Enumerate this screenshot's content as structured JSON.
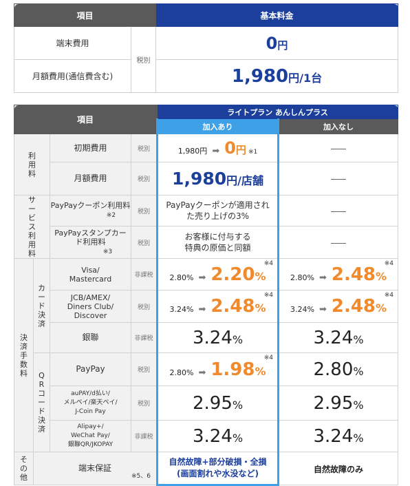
{
  "table1": {
    "col_item": "項目",
    "col_price": "基本料金",
    "rows": [
      {
        "label": "端末費用",
        "value": "0",
        "unit": "円"
      },
      {
        "label": "月額費用(通信費含む)",
        "value": "1,980",
        "unit": "円/1台"
      }
    ],
    "tax": "税別"
  },
  "table2": {
    "header_item": "項目",
    "plan_name": "ライトプラン あんしんプラス",
    "col_with": "加入あり",
    "col_without": "加入なし",
    "cat_usage": "利用料",
    "cat_service": "サービス利用料",
    "cat_fee": "決済手数料",
    "sub_card": "カード決済",
    "sub_qr": "QRコード決済",
    "cat_other": "その他",
    "initial": {
      "label": "初期費用",
      "tax": "税別",
      "old": "1,980円",
      "new": "0",
      "new_unit": "円",
      "note": "※1",
      "none": "—"
    },
    "monthly": {
      "label": "月額費用",
      "tax": "税別",
      "value": "1,980",
      "unit": "円/店舗",
      "none": "—"
    },
    "coupon": {
      "label": "PayPayクーポン利用料",
      "note": "※2",
      "tax": "税別",
      "desc": "PayPayクーポンが適用された売り上げの3%"
    },
    "stamp": {
      "label": "PayPayスタンプカード利用料",
      "note": "※3",
      "tax": "税別",
      "desc1": "お客様に付与する",
      "desc2": "特典の原価と同額"
    },
    "visa": {
      "label1": "Visa/",
      "label2": "Mastercard",
      "tax": "非課税",
      "with_old": "2.80%",
      "with_new": "2.20",
      "without_old": "2.80%",
      "without_new": "2.48",
      "note": "※4"
    },
    "jcb": {
      "label1": "JCB/AMEX/",
      "label2": "Diners Club/",
      "label3": "Discover",
      "tax": "税別",
      "with_old": "3.24%",
      "with_new": "2.48",
      "without_old": "3.24%",
      "without_new": "2.48",
      "note": "※4"
    },
    "unionpay": {
      "label": "銀聯",
      "tax": "非課税",
      "with": "3.24",
      "without": "3.24"
    },
    "paypay": {
      "label": "PayPay",
      "tax": "税別",
      "with_old": "2.80%",
      "with_new": "1.98",
      "without": "2.80",
      "note": "※4"
    },
    "aupay": {
      "label1": "auPAY/d払い/",
      "label2": "メルペイ/楽天ペイ/",
      "label3": "J-Coin Pay",
      "tax": "税別",
      "with": "2.95",
      "without": "2.95"
    },
    "alipay": {
      "label1": "Alipay+/",
      "label2": "WeChat Pay/",
      "label3": "銀聯QR/JKOPAY",
      "tax": "非課税",
      "with": "3.24",
      "without": "3.24"
    },
    "warranty": {
      "label": "端末保証",
      "note": "※5、6",
      "with1": "自然故障+部分破損・全損",
      "with2": "(画面割れや水没など)",
      "without": "自然故障のみ"
    },
    "pct": "%"
  },
  "colors": {
    "navy": "#1b3f9a",
    "light_blue": "#3ea0e6",
    "orange": "#f08a2c",
    "header_gray": "#5a5a5a"
  }
}
